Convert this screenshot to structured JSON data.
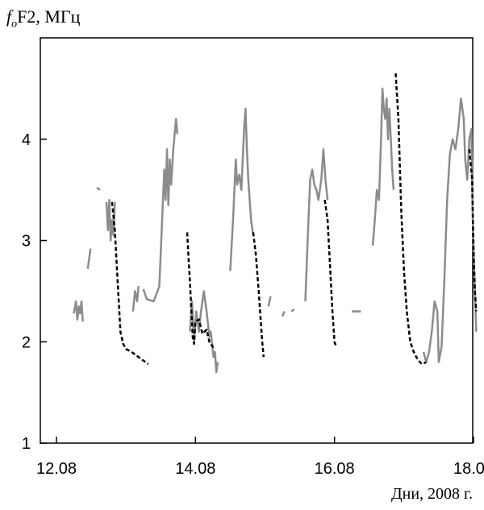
{
  "chart_data": {
    "type": "line",
    "ylabel_main": "F2, МГц",
    "ylabel_sub": "o",
    "ylabel_prefix": "f",
    "xlabel": "Дни, 2008 г.",
    "xlim": [
      12.0,
      18.1
    ],
    "ylim": [
      1.0,
      5.0
    ],
    "x_ticks": [
      12.08,
      14.08,
      16.08,
      18.08
    ],
    "x_tick_labels": [
      "12.08",
      "14.08",
      "16.08",
      "18.08"
    ],
    "y_ticks": [
      1,
      2,
      3,
      4
    ],
    "y_tick_labels": [
      "1",
      "2",
      "3",
      "4"
    ],
    "grid": false,
    "series": [
      {
        "style": "solid",
        "color": "#8c8c8c",
        "segments": [
          [
            [
              12.25,
              2.28
            ],
            [
              12.28,
              2.4
            ],
            [
              12.3,
              2.22
            ],
            [
              12.32,
              2.35
            ],
            [
              12.34,
              2.28
            ],
            [
              12.36,
              2.4
            ],
            [
              12.38,
              2.2
            ]
          ],
          [
            [
              12.45,
              2.72
            ],
            [
              12.49,
              2.92
            ]
          ],
          [
            [
              12.58,
              3.52
            ],
            [
              12.63,
              3.5
            ]
          ],
          [
            [
              12.72,
              3.38
            ],
            [
              12.74,
              3.1
            ],
            [
              12.76,
              3.4
            ],
            [
              12.78,
              3.0
            ],
            [
              12.8,
              3.2
            ],
            [
              12.82,
              3.05
            ],
            [
              12.84,
              3.38
            ]
          ],
          [
            [
              13.1,
              2.3
            ],
            [
              13.13,
              2.5
            ],
            [
              13.16,
              2.4
            ],
            [
              13.18,
              2.55
            ]
          ],
          [
            [
              13.25,
              2.52
            ],
            [
              13.3,
              2.42
            ],
            [
              13.4,
              2.4
            ],
            [
              13.48,
              2.55
            ],
            [
              13.52,
              3.2
            ],
            [
              13.55,
              3.7
            ],
            [
              13.57,
              3.4
            ],
            [
              13.59,
              3.9
            ],
            [
              13.61,
              3.35
            ],
            [
              13.63,
              3.8
            ],
            [
              13.65,
              3.55
            ],
            [
              13.68,
              3.9
            ],
            [
              13.72,
              4.2
            ],
            [
              13.74,
              4.05
            ]
          ],
          [
            [
              13.92,
              2.1
            ],
            [
              13.95,
              2.4
            ],
            [
              13.98,
              2.0
            ],
            [
              14.01,
              2.3
            ],
            [
              14.05,
              2.1
            ],
            [
              14.08,
              2.3
            ],
            [
              14.12,
              2.5
            ],
            [
              14.16,
              2.3
            ],
            [
              14.2,
              2.05
            ],
            [
              14.22,
              2.1
            ],
            [
              14.26,
              1.85
            ],
            [
              14.28,
              1.9
            ],
            [
              14.3,
              1.7
            ],
            [
              14.32,
              1.8
            ]
          ],
          [
            [
              14.5,
              2.7
            ],
            [
              14.54,
              3.2
            ],
            [
              14.58,
              3.8
            ],
            [
              14.6,
              3.55
            ],
            [
              14.63,
              3.65
            ],
            [
              14.66,
              3.5
            ],
            [
              14.7,
              4.1
            ],
            [
              14.72,
              4.3
            ],
            [
              14.74,
              3.9
            ],
            [
              14.76,
              3.6
            ],
            [
              14.78,
              3.4
            ],
            [
              14.8,
              3.2
            ],
            [
              14.83,
              3.05
            ]
          ],
          [
            [
              15.05,
              2.35
            ],
            [
              15.08,
              2.45
            ]
          ],
          [
            [
              15.25,
              2.25
            ],
            [
              15.28,
              2.3
            ]
          ],
          [
            [
              15.38,
              2.3
            ],
            [
              15.42,
              2.32
            ]
          ],
          [
            [
              15.58,
              2.4
            ],
            [
              15.62,
              3.1
            ],
            [
              15.65,
              3.6
            ],
            [
              15.68,
              3.7
            ],
            [
              15.71,
              3.55
            ],
            [
              15.74,
              3.5
            ],
            [
              15.77,
              3.4
            ],
            [
              15.81,
              3.6
            ],
            [
              15.84,
              3.9
            ],
            [
              15.87,
              3.6
            ],
            [
              15.9,
              3.4
            ]
          ],
          [
            [
              16.25,
              2.3
            ],
            [
              16.38,
              2.3
            ]
          ],
          [
            [
              16.55,
              2.95
            ],
            [
              16.58,
              3.2
            ],
            [
              16.61,
              3.5
            ],
            [
              16.64,
              3.4
            ],
            [
              16.67,
              4.0
            ],
            [
              16.69,
              4.5
            ],
            [
              16.71,
              4.3
            ],
            [
              16.73,
              4.2
            ],
            [
              16.75,
              4.4
            ],
            [
              16.77,
              4.0
            ],
            [
              16.79,
              4.3
            ],
            [
              16.81,
              4.0
            ],
            [
              16.83,
              3.7
            ],
            [
              16.85,
              3.5
            ]
          ],
          [
            [
              17.28,
              1.9
            ],
            [
              17.32,
              1.8
            ],
            [
              17.36,
              1.9
            ],
            [
              17.4,
              2.1
            ],
            [
              17.44,
              2.4
            ],
            [
              17.48,
              2.3
            ],
            [
              17.5,
              1.8
            ],
            [
              17.54,
              1.95
            ],
            [
              17.58,
              2.6
            ],
            [
              17.62,
              3.4
            ],
            [
              17.66,
              3.85
            ],
            [
              17.7,
              4.0
            ],
            [
              17.74,
              3.9
            ],
            [
              17.78,
              4.1
            ],
            [
              17.82,
              4.4
            ],
            [
              17.86,
              4.2
            ],
            [
              17.88,
              3.8
            ],
            [
              17.91,
              3.6
            ],
            [
              17.94,
              4.0
            ],
            [
              17.97,
              4.1
            ],
            [
              17.99,
              3.2
            ],
            [
              18.01,
              2.7
            ],
            [
              18.04,
              2.1
            ]
          ]
        ]
      },
      {
        "style": "dashed",
        "color": "#000000",
        "segments": [
          [
            [
              12.8,
              3.38
            ],
            [
              12.84,
              3.1
            ],
            [
              12.88,
              2.6
            ],
            [
              12.92,
              2.1
            ],
            [
              12.96,
              1.98
            ],
            [
              13.0,
              1.93
            ],
            [
              13.08,
              1.9
            ],
            [
              13.16,
              1.86
            ],
            [
              13.24,
              1.82
            ],
            [
              13.32,
              1.78
            ]
          ],
          [
            [
              13.88,
              3.08
            ],
            [
              13.92,
              2.6
            ],
            [
              13.96,
              2.05
            ],
            [
              13.98,
              1.98
            ],
            [
              14.0,
              2.2
            ],
            [
              14.05,
              2.22
            ],
            [
              14.1,
              2.08
            ],
            [
              14.16,
              2.12
            ],
            [
              14.2,
              2.0
            ],
            [
              14.25,
              1.95
            ],
            [
              14.29,
              1.93
            ]
          ],
          [
            [
              14.83,
              3.08
            ],
            [
              14.87,
              2.85
            ],
            [
              14.91,
              2.5
            ],
            [
              14.94,
              2.2
            ],
            [
              14.96,
              2.0
            ],
            [
              14.98,
              1.85
            ]
          ],
          [
            [
              15.86,
              3.4
            ],
            [
              15.9,
              3.2
            ],
            [
              15.94,
              2.7
            ],
            [
              15.97,
              2.3
            ],
            [
              16.0,
              2.0
            ],
            [
              16.02,
              1.96
            ]
          ],
          [
            [
              16.88,
              4.65
            ],
            [
              16.92,
              4.2
            ],
            [
              16.96,
              3.3
            ],
            [
              17.0,
              2.7
            ],
            [
              17.04,
              2.3
            ],
            [
              17.09,
              2.0
            ],
            [
              17.14,
              1.9
            ],
            [
              17.2,
              1.82
            ],
            [
              17.26,
              1.78
            ],
            [
              17.32,
              1.8
            ]
          ],
          [
            [
              17.94,
              3.9
            ],
            [
              17.98,
              3.6
            ],
            [
              18.0,
              2.9
            ],
            [
              18.02,
              2.5
            ],
            [
              18.04,
              2.3
            ]
          ]
        ]
      }
    ]
  }
}
